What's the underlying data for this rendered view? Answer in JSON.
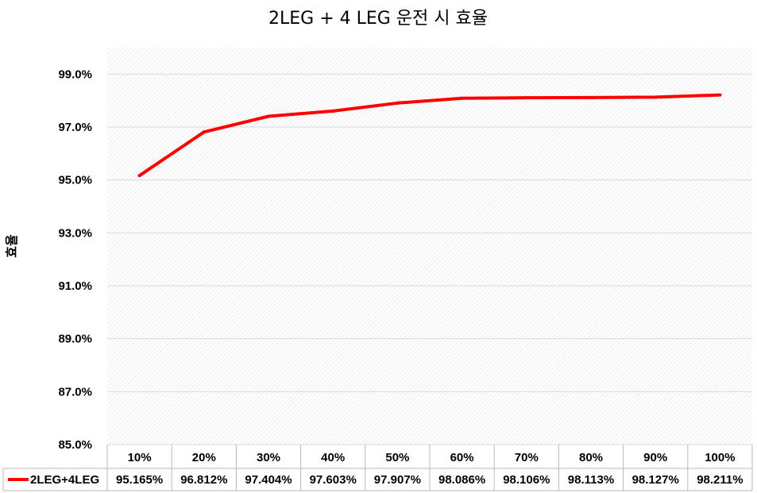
{
  "chart_data": {
    "type": "line",
    "title": "2LEG + 4 LEG 운전 시 효율",
    "ylabel": "효율",
    "xlabel": "",
    "categories": [
      "10%",
      "20%",
      "30%",
      "40%",
      "50%",
      "60%",
      "70%",
      "80%",
      "90%",
      "100%"
    ],
    "series": [
      {
        "name": "2LEG+4LEG",
        "color": "#ff0000",
        "values": [
          95.165,
          96.812,
          97.404,
          97.603,
          97.907,
          98.086,
          98.106,
          98.113,
          98.127,
          98.211
        ],
        "labels": [
          "95.165%",
          "96.812%",
          "97.404%",
          "97.603%",
          "97.907%",
          "98.086%",
          "98.106%",
          "98.113%",
          "98.127%",
          "98.211%"
        ]
      }
    ],
    "ylim": [
      85.0,
      100.0
    ],
    "yticks": [
      85.0,
      87.0,
      89.0,
      91.0,
      93.0,
      95.0,
      97.0,
      99.0
    ],
    "ytick_labels": [
      "85.0%",
      "87.0%",
      "89.0%",
      "91.0%",
      "93.0%",
      "95.0%",
      "97.0%",
      "99.0%"
    ],
    "grid": true,
    "legend": "data-table-left"
  }
}
